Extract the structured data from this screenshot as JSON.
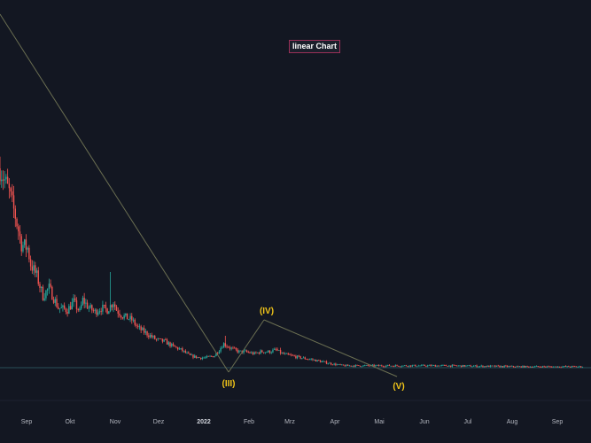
{
  "chart_data": {
    "type": "candlestick",
    "title": "linear Chart",
    "x_tick_labels": [
      "Sep",
      "Okt",
      "Nov",
      "Dez",
      "2022",
      "Feb",
      "Mrz",
      "Apr",
      "Mai",
      "Jun",
      "Jul",
      "Aug",
      "Sep"
    ],
    "x_tick_bold": [
      "2022"
    ],
    "wave_labels": [
      {
        "text": "(III)",
        "at": "mid-January 2022",
        "position": "below"
      },
      {
        "text": "(IV)",
        "at": "early February 2022",
        "position": "above"
      },
      {
        "text": "(V)",
        "at": "mid-May 2022",
        "position": "below"
      }
    ],
    "trend_lines": [
      {
        "from": "start of chart",
        "to": "(III)"
      },
      {
        "from": "(III)",
        "to": "(IV)"
      },
      {
        "from": "(IV)",
        "to": "(V)"
      }
    ],
    "price_path": [
      [
        0,
        1.0
      ],
      [
        6,
        0.88
      ],
      [
        10,
        0.76
      ],
      [
        14,
        0.62
      ],
      [
        18,
        0.6
      ],
      [
        20,
        0.52
      ],
      [
        24,
        0.46
      ],
      [
        28,
        0.36
      ],
      [
        32,
        0.4
      ],
      [
        38,
        0.3
      ],
      [
        44,
        0.29
      ],
      [
        48,
        0.33
      ],
      [
        52,
        0.28
      ],
      [
        54,
        0.34
      ],
      [
        58,
        0.3
      ],
      [
        62,
        0.28
      ],
      [
        66,
        0.3
      ],
      [
        70,
        0.29
      ],
      [
        74,
        0.33
      ],
      [
        76,
        0.29
      ],
      [
        80,
        0.26
      ],
      [
        86,
        0.24
      ],
      [
        90,
        0.2
      ],
      [
        96,
        0.17
      ],
      [
        102,
        0.14
      ],
      [
        108,
        0.13
      ],
      [
        112,
        0.11
      ],
      [
        118,
        0.09
      ],
      [
        124,
        0.06
      ],
      [
        130,
        0.05
      ],
      [
        134,
        0.05
      ],
      [
        140,
        0.06
      ],
      [
        146,
        0.12
      ],
      [
        150,
        0.1
      ],
      [
        156,
        0.08
      ],
      [
        160,
        0.08
      ],
      [
        166,
        0.07
      ],
      [
        170,
        0.08
      ],
      [
        176,
        0.08
      ],
      [
        180,
        0.09
      ],
      [
        184,
        0.07
      ],
      [
        190,
        0.06
      ],
      [
        196,
        0.05
      ],
      [
        204,
        0.04
      ],
      [
        210,
        0.03
      ],
      [
        216,
        0.02
      ],
      [
        224,
        0.01
      ],
      [
        240,
        0.01
      ],
      [
        260,
        0.01
      ],
      [
        290,
        0.01
      ],
      [
        340,
        0.005
      ],
      [
        380,
        0.005
      ]
    ],
    "spikes": [
      {
        "day": 72,
        "high": 0.48
      },
      {
        "day": 147,
        "high": 0.16
      },
      {
        "day": 183,
        "high": 0.1
      }
    ],
    "baseline_level": 0.0,
    "colors": {
      "background": "#131722",
      "up_candle": "#26a69a",
      "down_candle": "#ef5350",
      "trend_line": "#6b6f52",
      "wave_label": "#f0c419",
      "axis_label": "#b2b5be",
      "axis_label_bold": "#d1d4dc",
      "baseline": "#2a4f58",
      "title_border": "#9a3058"
    },
    "grid": false,
    "legend": "none"
  }
}
